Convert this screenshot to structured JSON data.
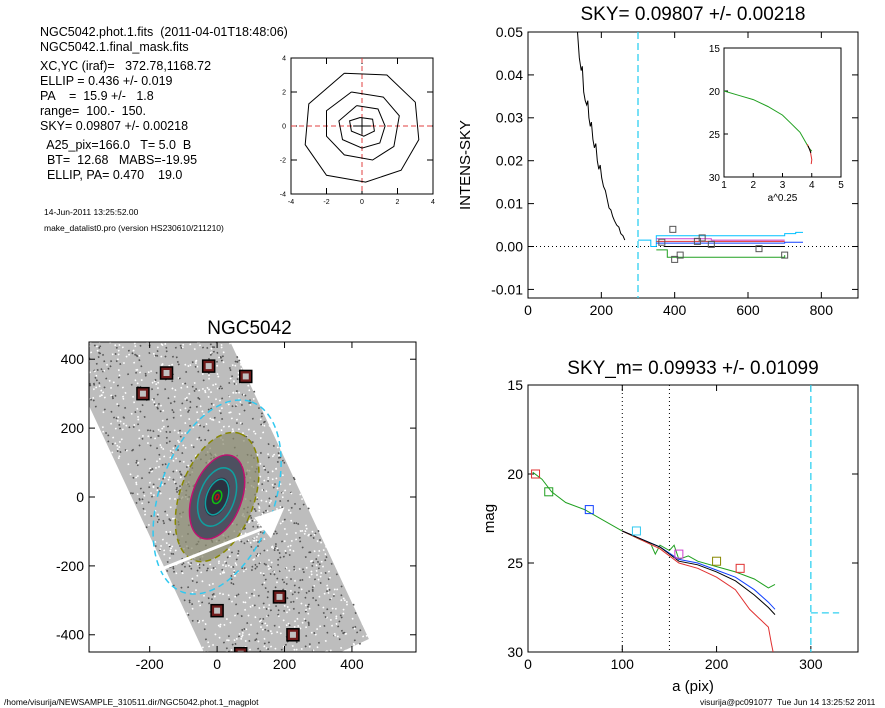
{
  "header": {
    "lines": [
      "NGC5042.phot.1.fits  (2011-04-01T18:48:06)",
      "NGC5042.1.final_mask.fits",
      "",
      "XC,YC (iraf)=   372.78,1168.72",
      "ELLIP = 0.436 +/- 0.019",
      "PA    =  15.9 +/-   1.8",
      "range=  100.-  150.",
      "SKY= 0.09807 +/- 0.00218",
      "",
      "  A25_pix=166.0   T= 5.0  B",
      "  BT=  12.68   MABS=-19.95",
      "  ELLIP, PA= 0.470    19.0"
    ],
    "timestamp": "14-Jun-2011 13:25:52.00",
    "program": "make_datalist0.pro (version HS230610/211210)"
  },
  "footer": {
    "left": "/home/visurija/NEWSAMPLE_310511.dir/NGC5042.phot.1_magplot",
    "right": "visurija@pc091077  Tue Jun 14 13:25:52 2011"
  },
  "chart_data": [
    {
      "id": "contour",
      "type": "contour",
      "xlim": [
        -4,
        4
      ],
      "ylim": [
        -4,
        4
      ],
      "xticks": [
        "-4",
        "-2",
        "0",
        "2",
        "4"
      ],
      "yticks": [
        "-4",
        "-2",
        "0",
        "2",
        "4"
      ],
      "contours": [
        [
          [
            -0.1,
            0.5
          ],
          [
            0.6,
            0.4
          ],
          [
            0.7,
            -0.3
          ],
          [
            0.1,
            -0.6
          ],
          [
            -0.6,
            -0.3
          ],
          [
            -0.7,
            0.3
          ]
        ],
        [
          [
            -0.3,
            1.2
          ],
          [
            0.9,
            1.0
          ],
          [
            1.3,
            0.0
          ],
          [
            1.0,
            -1.0
          ],
          [
            0.0,
            -1.3
          ],
          [
            -1.1,
            -0.8
          ],
          [
            -1.3,
            0.3
          ]
        ],
        [
          [
            -0.6,
            2.0
          ],
          [
            1.2,
            1.7
          ],
          [
            2.1,
            0.6
          ],
          [
            1.8,
            -1.2
          ],
          [
            0.6,
            -2.0
          ],
          [
            -1.0,
            -1.7
          ],
          [
            -2.0,
            -0.6
          ],
          [
            -2.0,
            0.9
          ]
        ],
        [
          [
            -1.0,
            3.1
          ],
          [
            1.4,
            3.0
          ],
          [
            3.0,
            1.4
          ],
          [
            3.2,
            -0.8
          ],
          [
            2.2,
            -2.6
          ],
          [
            0.2,
            -3.3
          ],
          [
            -2.0,
            -2.9
          ],
          [
            -3.2,
            -1.1
          ],
          [
            -3.0,
            1.3
          ]
        ]
      ]
    },
    {
      "id": "sky-profile",
      "type": "line",
      "title": "SKY= 0.09807 +/- 0.00218",
      "ylabel": "INTENS-SKY",
      "xlim": [
        0,
        900
      ],
      "ylim": [
        -0.012,
        0.05
      ],
      "xticks": [
        "0",
        "200",
        "400",
        "600",
        "800"
      ],
      "yticks": [
        "-0.01",
        "0.00",
        "0.01",
        "0.02",
        "0.03",
        "0.04",
        "0.05"
      ],
      "sky_radius": 300,
      "series": [
        {
          "color": "#000000",
          "points": [
            [
              135,
              0.05
            ],
            [
              140,
              0.044
            ],
            [
              145,
              0.041
            ],
            [
              148,
              0.042
            ],
            [
              152,
              0.036
            ],
            [
              156,
              0.034
            ],
            [
              160,
              0.033
            ],
            [
              163,
              0.034
            ],
            [
              166,
              0.03
            ],
            [
              170,
              0.028
            ],
            [
              173,
              0.029
            ],
            [
              177,
              0.025
            ],
            [
              181,
              0.023
            ],
            [
              185,
              0.024
            ],
            [
              189,
              0.02
            ],
            [
              193,
              0.018
            ],
            [
              197,
              0.019
            ],
            [
              201,
              0.016
            ],
            [
              206,
              0.014
            ],
            [
              211,
              0.013
            ],
            [
              216,
              0.011
            ],
            [
              221,
              0.009
            ],
            [
              226,
              0.0085
            ],
            [
              231,
              0.007
            ],
            [
              236,
              0.006
            ],
            [
              242,
              0.005
            ],
            [
              248,
              0.0045
            ],
            [
              253,
              0.003
            ],
            [
              259,
              0.0025
            ],
            [
              264,
              0.0015
            ]
          ]
        },
        {
          "color": "#000000",
          "points": [
            [
              370,
              0.0
            ],
            [
              700,
              0.0
            ]
          ]
        },
        {
          "color": "#00c0ff",
          "points": [
            [
              300,
              0.0015
            ],
            [
              335,
              0.0015
            ],
            [
              335,
              0.0
            ],
            [
              350,
              0.0
            ],
            [
              350,
              0.0025
            ],
            [
              700,
              0.0025
            ],
            [
              700,
              0.003
            ],
            [
              730,
              0.003
            ],
            [
              730,
              0.0033
            ],
            [
              750,
              0.0033
            ]
          ]
        },
        {
          "color": "#1040ff",
          "points": [
            [
              350,
              0.0008
            ],
            [
              700,
              0.0008
            ],
            [
              700,
              0.001
            ],
            [
              750,
              0.001
            ]
          ]
        },
        {
          "color": "#d040d0",
          "points": [
            [
              350,
              0.0018
            ],
            [
              500,
              0.0018
            ],
            [
              500,
              0.0015
            ],
            [
              700,
              0.0015
            ]
          ]
        },
        {
          "color": "#e03030",
          "points": [
            [
              350,
              0.0012
            ],
            [
              700,
              0.0012
            ]
          ]
        },
        {
          "color": "#20a020",
          "points": [
            [
              350,
              -0.0008
            ],
            [
              380,
              -0.0008
            ],
            [
              380,
              -0.0025
            ],
            [
              700,
              -0.0025
            ],
            [
              700,
              -0.002
            ]
          ]
        }
      ],
      "markers": [
        [
          365,
          0.001
        ],
        [
          395,
          0.004
        ],
        [
          400,
          -0.003
        ],
        [
          415,
          -0.002
        ],
        [
          462,
          0.0012
        ],
        [
          475,
          0.002
        ],
        [
          500,
          0.0005
        ],
        [
          630,
          -0.0005
        ],
        [
          700,
          -0.002
        ]
      ],
      "inset": {
        "xlabel": "a^0.25",
        "xlim": [
          1,
          5
        ],
        "ylim": [
          15,
          30
        ],
        "xticks": [
          "1",
          "2",
          "3",
          "4",
          "5"
        ],
        "yticks": [
          "15",
          "20",
          "25",
          "30"
        ],
        "series": [
          {
            "color": "#20a020",
            "points": [
              [
                1.0,
                20.0
              ],
              [
                1.5,
                20.5
              ],
              [
                2.0,
                21.0
              ],
              [
                2.5,
                21.8
              ],
              [
                3.0,
                22.8
              ],
              [
                3.3,
                23.8
              ],
              [
                3.6,
                24.8
              ],
              [
                3.8,
                26.0
              ],
              [
                3.9,
                26.6
              ],
              [
                4.0,
                27.0
              ]
            ]
          },
          {
            "color": "#e03030",
            "points": [
              [
                3.85,
                26.2
              ],
              [
                3.95,
                27.0
              ],
              [
                4.0,
                28.0
              ],
              [
                3.98,
                28.5
              ]
            ]
          },
          {
            "color": "#000000",
            "points": [
              [
                3.88,
                26.4
              ],
              [
                3.97,
                27.2
              ]
            ]
          }
        ]
      }
    },
    {
      "id": "image",
      "type": "image",
      "title": "NGC5042",
      "xlim": [
        -380,
        590
      ],
      "ylim": [
        -450,
        450
      ],
      "xticks": [
        "-200",
        "0",
        "200",
        "400"
      ],
      "yticks": [
        "-400",
        "-200",
        "0",
        "200",
        "400"
      ],
      "boxes": [
        [
          -220,
          300
        ],
        [
          -150,
          360
        ],
        [
          -25,
          380
        ],
        [
          85,
          350
        ],
        [
          0,
          -330
        ],
        [
          185,
          -290
        ],
        [
          225,
          -400
        ],
        [
          70,
          -455
        ]
      ],
      "ellipses": [
        {
          "a": 300,
          "b": 170,
          "color": "#30c8f0",
          "dash": true
        },
        {
          "a": 200,
          "b": 110,
          "color": "#888800",
          "dash": true
        },
        {
          "a": 130,
          "b": 73,
          "color": "#c01070",
          "dash": false
        },
        {
          "a": 90,
          "b": 52,
          "color": "#10a0a0",
          "dash": false
        },
        {
          "a": 55,
          "b": 31,
          "color": "#10a0a0",
          "dash": false
        },
        {
          "a": 20,
          "b": 13,
          "color": "#10c010",
          "dash": false
        },
        {
          "a": 8,
          "b": 5,
          "color": "#c01010",
          "dash": false
        }
      ]
    },
    {
      "id": "mag-profile",
      "type": "line",
      "title": "SKY_m=  0.09933 +/- 0.01099",
      "xlabel": "a (pix)",
      "ylabel": "mag",
      "xlim": [
        0,
        350
      ],
      "ylim": [
        30,
        15
      ],
      "xticks": [
        "0",
        "100",
        "200",
        "300"
      ],
      "yticks": [
        "15",
        "20",
        "25",
        "30"
      ],
      "range_lines": [
        100,
        150
      ],
      "sky_radius": 300,
      "sky_mag": 27.8,
      "series": [
        {
          "color": "#20a020",
          "points": [
            [
              5,
              19.9
            ],
            [
              15,
              20.3
            ],
            [
              25,
              21.0
            ],
            [
              40,
              21.6
            ],
            [
              60,
              22.0
            ],
            [
              80,
              22.6
            ],
            [
              100,
              23.2
            ],
            [
              120,
              23.7
            ],
            [
              130,
              23.9
            ],
            [
              135,
              24.5
            ],
            [
              140,
              24.0
            ],
            [
              150,
              24.3
            ],
            [
              155,
              24.0
            ],
            [
              160,
              24.8
            ],
            [
              170,
              24.6
            ],
            [
              180,
              24.9
            ],
            [
              200,
              25.2
            ],
            [
              220,
              25.5
            ],
            [
              240,
              25.9
            ],
            [
              255,
              26.4
            ],
            [
              262,
              26.2
            ]
          ]
        },
        {
          "color": "#1040ff",
          "points": [
            [
              100,
              23.2
            ],
            [
              140,
              24.1
            ],
            [
              160,
              24.8
            ],
            [
              180,
              25.0
            ],
            [
              200,
              25.4
            ],
            [
              220,
              25.8
            ],
            [
              240,
              26.5
            ],
            [
              255,
              27.2
            ],
            [
              262,
              27.6
            ]
          ]
        },
        {
          "color": "#e03030",
          "points": [
            [
              100,
              23.2
            ],
            [
              140,
              24.2
            ],
            [
              160,
              25.0
            ],
            [
              180,
              25.3
            ],
            [
              200,
              25.8
            ],
            [
              220,
              26.5
            ],
            [
              235,
              27.6
            ],
            [
              245,
              28.1
            ],
            [
              255,
              28.6
            ],
            [
              258,
              29.5
            ],
            [
              260,
              30.0
            ]
          ]
        },
        {
          "color": "#000000",
          "points": [
            [
              100,
              23.2
            ],
            [
              140,
              24.1
            ],
            [
              160,
              24.9
            ],
            [
              180,
              25.1
            ],
            [
              200,
              25.5
            ],
            [
              220,
              26.0
            ],
            [
              240,
              26.8
            ],
            [
              255,
              27.5
            ],
            [
              262,
              27.9
            ]
          ]
        }
      ],
      "markers": [
        {
          "x": 8,
          "y": 20.0,
          "color": "#e03030"
        },
        {
          "x": 22,
          "y": 21.0,
          "color": "#20a020"
        },
        {
          "x": 65,
          "y": 22.0,
          "color": "#1040ff"
        },
        {
          "x": 115,
          "y": 23.2,
          "color": "#30c8f0"
        },
        {
          "x": 160,
          "y": 24.5,
          "color": "#d040d0"
        },
        {
          "x": 200,
          "y": 24.9,
          "color": "#888800"
        },
        {
          "x": 225,
          "y": 25.3,
          "color": "#e03030"
        }
      ]
    }
  ]
}
